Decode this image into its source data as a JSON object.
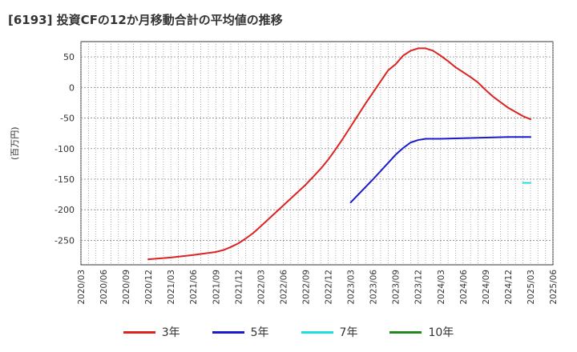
{
  "chart_data": {
    "type": "line",
    "title": "[6193]  投資CFの12か月移動合計の平均値の推移",
    "ylabel": "(百万円)",
    "xlabel": "",
    "ylim": [
      -290,
      75
    ],
    "yticks": [
      50,
      0,
      -50,
      -100,
      -150,
      -200,
      -250
    ],
    "x_tick_labels": [
      "2020/03",
      "2020/06",
      "2020/09",
      "2020/12",
      "2021/03",
      "2021/06",
      "2021/09",
      "2021/12",
      "2022/03",
      "2022/06",
      "2022/09",
      "2022/12",
      "2023/03",
      "2023/06",
      "2023/09",
      "2023/12",
      "2024/03",
      "2024/06",
      "2024/09",
      "2024/12",
      "2025/03",
      "2025/06"
    ],
    "grid": true,
    "legend_position": "bottom",
    "series": [
      {
        "name": "3年",
        "color": "#dd2222",
        "x": [
          "2020/12",
          "2021/03",
          "2021/06",
          "2021/09",
          "2021/10",
          "2021/11",
          "2021/12",
          "2022/01",
          "2022/02",
          "2022/03",
          "2022/06",
          "2022/09",
          "2022/10",
          "2022/11",
          "2022/12",
          "2023/01",
          "2023/02",
          "2023/03",
          "2023/04",
          "2023/05",
          "2023/06",
          "2023/07",
          "2023/08",
          "2023/09",
          "2023/10",
          "2023/11",
          "2023/12",
          "2024/01",
          "2024/02",
          "2024/03",
          "2024/04",
          "2024/05",
          "2024/06",
          "2024/07",
          "2024/08",
          "2024/09",
          "2024/10",
          "2024/11",
          "2024/12",
          "2025/01",
          "2025/02",
          "2025/03"
        ],
        "values": [
          -281,
          -278,
          -274,
          -269,
          -266,
          -261,
          -255,
          -247,
          -238,
          -227,
          -193,
          -159,
          -146,
          -133,
          -118,
          -101,
          -83,
          -64,
          -45,
          -26,
          -8,
          10,
          28,
          38,
          52,
          60,
          64,
          64,
          60,
          52,
          43,
          33,
          25,
          17,
          8,
          -4,
          -15,
          -24,
          -33,
          -40,
          -47,
          -52
        ]
      },
      {
        "name": "5年",
        "color": "#1a1acc",
        "x": [
          "2023/03",
          "2023/06",
          "2023/09",
          "2023/10",
          "2023/11",
          "2023/12",
          "2024/01",
          "2024/03",
          "2024/06",
          "2024/09",
          "2024/12",
          "2025/03"
        ],
        "values": [
          -188,
          -150,
          -110,
          -99,
          -90,
          -86,
          -84,
          -84,
          -83,
          -82,
          -81,
          -81
        ]
      },
      {
        "name": "7年",
        "color": "#22dddd",
        "x": [
          "2025/02",
          "2025/03"
        ],
        "values": [
          -156,
          -156
        ]
      },
      {
        "name": "10年",
        "color": "#228822",
        "x": [],
        "values": []
      }
    ]
  }
}
